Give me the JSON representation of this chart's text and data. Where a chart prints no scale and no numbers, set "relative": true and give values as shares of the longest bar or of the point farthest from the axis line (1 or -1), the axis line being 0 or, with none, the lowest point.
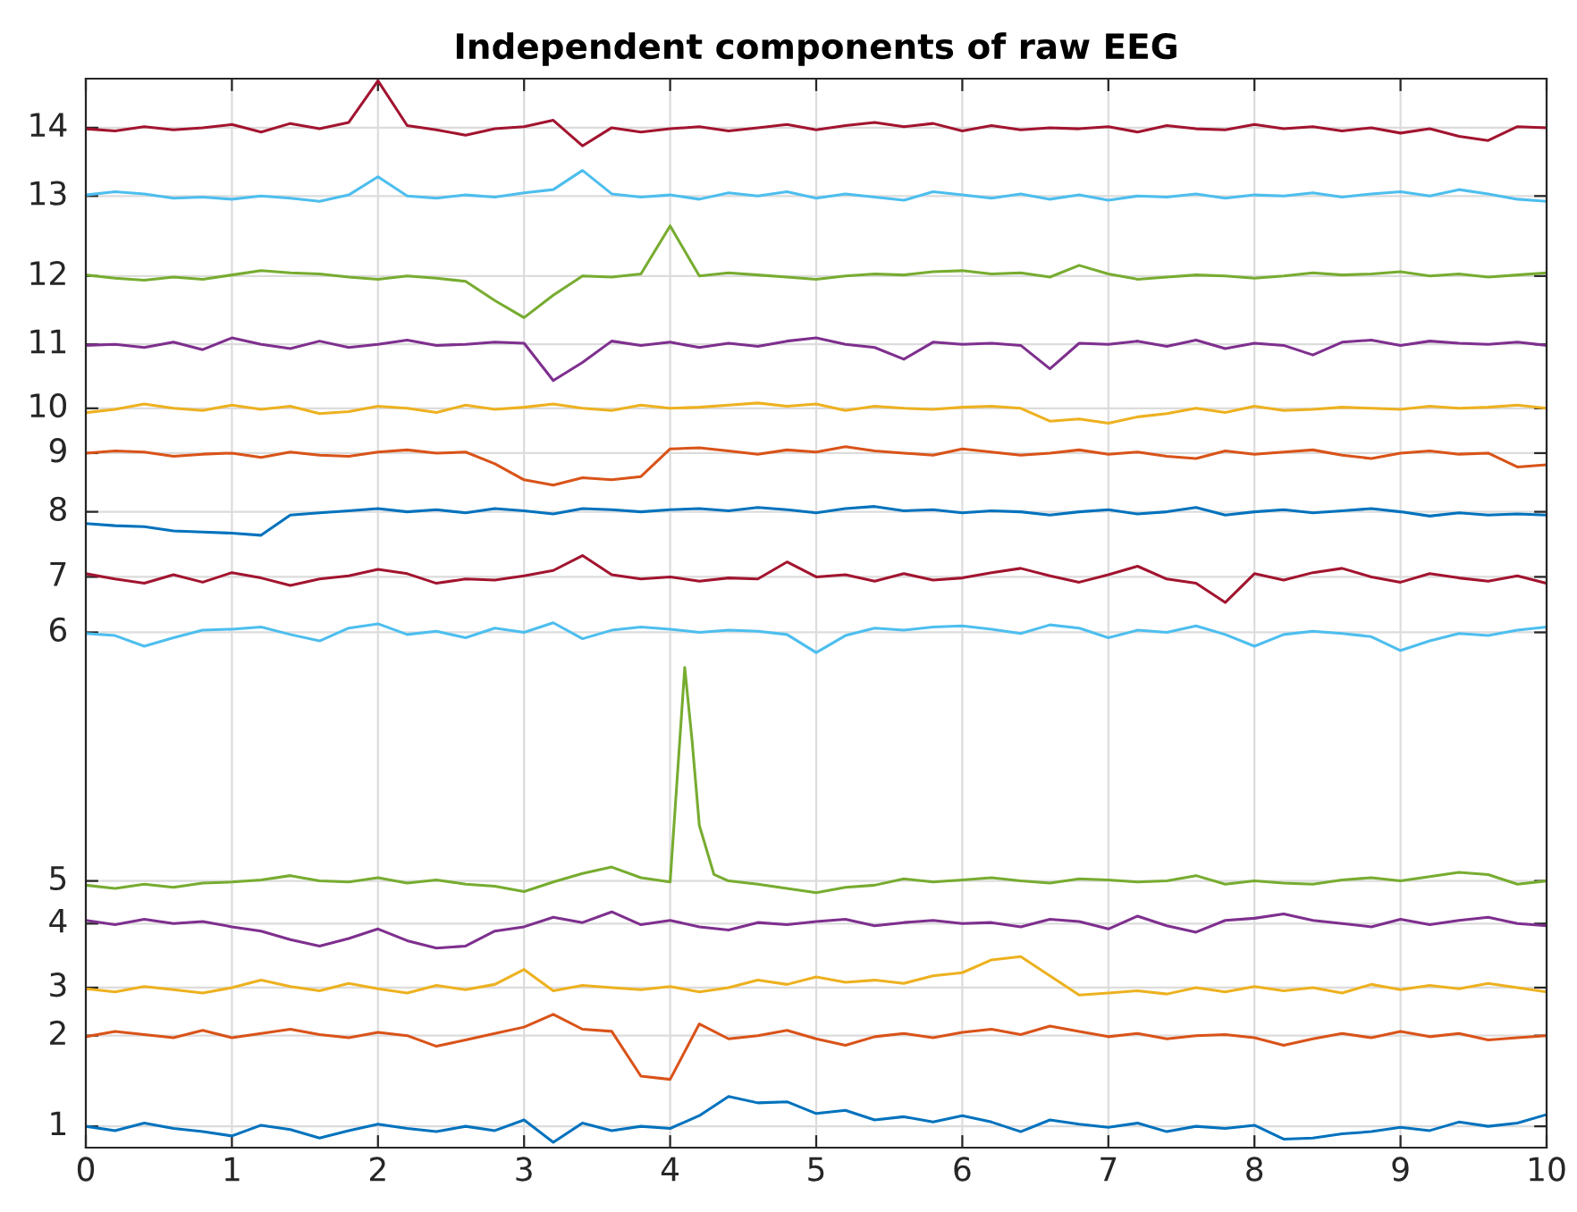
{
  "chart_data": {
    "type": "line",
    "title": "Independent components of raw EEG",
    "relative": true,
    "x": [
      0,
      0.2,
      0.4,
      0.6,
      0.8,
      1.0,
      1.2,
      1.4,
      1.6,
      1.8,
      2.0,
      2.2,
      2.4,
      2.6,
      2.8,
      3.0,
      3.2,
      3.4,
      3.6,
      3.8,
      4.0,
      4.2,
      4.4,
      4.6,
      4.8,
      5.0,
      5.2,
      5.4,
      5.6,
      5.8,
      6.0,
      6.2,
      6.4,
      6.6,
      6.8,
      7.0,
      7.2,
      7.4,
      7.6,
      7.8,
      8.0,
      8.2,
      8.4,
      8.6,
      8.8,
      9.0,
      9.2,
      9.4,
      9.6,
      9.8,
      10
    ],
    "xlim": [
      0,
      10
    ],
    "xticks": [
      0,
      1,
      2,
      3,
      4,
      5,
      6,
      7,
      8,
      9,
      10
    ],
    "grid": true,
    "series": [
      {
        "name": "1",
        "color": "#0072bd",
        "values": [
          0.02,
          0.016,
          0.023,
          0.018,
          0.015,
          0.011,
          0.021,
          0.017,
          0.009,
          0.016,
          0.022,
          0.018,
          0.015,
          0.02,
          0.016,
          0.026,
          0.005,
          0.023,
          0.016,
          0.02,
          0.018,
          0.03,
          0.048,
          0.042,
          0.043,
          0.032,
          0.035,
          0.026,
          0.029,
          0.024,
          0.03,
          0.024,
          0.015,
          0.026,
          0.022,
          0.019,
          0.023,
          0.015,
          0.02,
          0.018,
          0.021,
          0.008,
          0.009,
          0.013,
          0.015,
          0.019,
          0.016,
          0.024,
          0.02,
          0.023,
          0.031
        ]
      },
      {
        "name": "2",
        "color": "#d95319",
        "values": [
          0.104,
          0.109,
          0.106,
          0.103,
          0.11,
          0.103,
          0.107,
          0.111,
          0.106,
          0.103,
          0.108,
          0.105,
          0.095,
          0.101,
          0.107,
          0.113,
          0.125,
          0.111,
          0.109,
          0.067,
          0.064,
          0.116,
          0.102,
          0.105,
          0.11,
          0.102,
          0.096,
          0.104,
          0.107,
          0.103,
          0.108,
          0.111,
          0.106,
          0.114,
          0.109,
          0.104,
          0.107,
          0.102,
          0.105,
          0.106,
          0.103,
          0.096,
          0.102,
          0.107,
          0.103,
          0.109,
          0.104,
          0.107,
          0.101,
          0.103,
          0.105
        ]
      },
      {
        "name": "3",
        "color": "#edb120",
        "values": [
          0.149,
          0.146,
          0.151,
          0.148,
          0.145,
          0.15,
          0.157,
          0.151,
          0.147,
          0.154,
          0.149,
          0.145,
          0.152,
          0.148,
          0.153,
          0.167,
          0.147,
          0.152,
          0.15,
          0.148,
          0.151,
          0.146,
          0.15,
          0.157,
          0.153,
          0.16,
          0.155,
          0.157,
          0.154,
          0.161,
          0.164,
          0.176,
          0.179,
          0.161,
          0.143,
          0.145,
          0.147,
          0.144,
          0.15,
          0.146,
          0.151,
          0.147,
          0.15,
          0.145,
          0.153,
          0.148,
          0.152,
          0.149,
          0.154,
          0.15,
          0.146
        ]
      },
      {
        "name": "4",
        "color": "#7e2f8e",
        "values": [
          0.213,
          0.209,
          0.214,
          0.21,
          0.212,
          0.207,
          0.203,
          0.195,
          0.189,
          0.196,
          0.205,
          0.194,
          0.187,
          0.189,
          0.203,
          0.207,
          0.216,
          0.211,
          0.221,
          0.209,
          0.213,
          0.207,
          0.204,
          0.211,
          0.209,
          0.212,
          0.214,
          0.208,
          0.211,
          0.213,
          0.21,
          0.211,
          0.207,
          0.214,
          0.212,
          0.205,
          0.217,
          0.208,
          0.202,
          0.213,
          0.215,
          0.219,
          0.213,
          0.21,
          0.207,
          0.214,
          0.209,
          0.213,
          0.216,
          0.21,
          0.208
        ]
      },
      {
        "name": "5",
        "color": "#77ac30",
        "x": [
          0,
          0.2,
          0.4,
          0.6,
          0.8,
          1.0,
          1.2,
          1.4,
          1.6,
          1.8,
          2.0,
          2.2,
          2.4,
          2.6,
          2.8,
          3.0,
          3.2,
          3.4,
          3.6,
          3.8,
          4.0,
          4.1,
          4.15,
          4.2,
          4.3,
          4.4,
          4.6,
          4.8,
          5.0,
          5.2,
          5.4,
          5.6,
          5.8,
          6.0,
          6.2,
          6.4,
          6.6,
          6.8,
          7.0,
          7.2,
          7.4,
          7.6,
          7.8,
          8.0,
          8.2,
          8.4,
          8.6,
          8.8,
          9.0,
          9.2,
          9.4,
          9.6,
          9.8,
          10
        ],
        "values": [
          0.246,
          0.243,
          0.247,
          0.244,
          0.248,
          0.249,
          0.251,
          0.255,
          0.25,
          0.249,
          0.253,
          0.248,
          0.251,
          0.247,
          0.245,
          0.24,
          0.249,
          0.257,
          0.263,
          0.253,
          0.249,
          0.45,
          0.382,
          0.302,
          0.256,
          0.25,
          0.247,
          0.243,
          0.239,
          0.244,
          0.246,
          0.252,
          0.249,
          0.251,
          0.253,
          0.25,
          0.248,
          0.252,
          0.251,
          0.249,
          0.25,
          0.255,
          0.247,
          0.25,
          0.248,
          0.247,
          0.251,
          0.253,
          0.25,
          0.254,
          0.258,
          0.256,
          0.247,
          0.25
        ]
      },
      {
        "name": "6",
        "color": "#4dbeee",
        "values": [
          0.482,
          0.48,
          0.47,
          0.478,
          0.485,
          0.486,
          0.488,
          0.481,
          0.475,
          0.487,
          0.491,
          0.481,
          0.484,
          0.478,
          0.487,
          0.483,
          0.492,
          0.477,
          0.485,
          0.488,
          0.486,
          0.483,
          0.485,
          0.484,
          0.481,
          0.464,
          0.48,
          0.487,
          0.485,
          0.488,
          0.489,
          0.486,
          0.482,
          0.49,
          0.487,
          0.478,
          0.485,
          0.483,
          0.489,
          0.481,
          0.47,
          0.481,
          0.484,
          0.482,
          0.479,
          0.466,
          0.475,
          0.482,
          0.48,
          0.485,
          0.488
        ]
      },
      {
        "name": "7",
        "color": "#a2142f",
        "values": [
          0.538,
          0.533,
          0.529,
          0.537,
          0.53,
          0.539,
          0.534,
          0.527,
          0.533,
          0.536,
          0.542,
          0.538,
          0.529,
          0.533,
          0.532,
          0.536,
          0.541,
          0.555,
          0.537,
          0.533,
          0.535,
          0.531,
          0.534,
          0.533,
          0.549,
          0.535,
          0.537,
          0.531,
          0.538,
          0.532,
          0.534,
          0.539,
          0.543,
          0.536,
          0.53,
          0.537,
          0.545,
          0.533,
          0.529,
          0.511,
          0.538,
          0.532,
          0.539,
          0.543,
          0.535,
          0.53,
          0.538,
          0.534,
          0.531,
          0.536,
          0.529
        ]
      },
      {
        "name": "8",
        "color": "#0072bd",
        "values": [
          0.585,
          0.583,
          0.582,
          0.578,
          0.577,
          0.576,
          0.574,
          0.593,
          0.595,
          0.597,
          0.599,
          0.596,
          0.598,
          0.595,
          0.599,
          0.597,
          0.594,
          0.599,
          0.598,
          0.596,
          0.598,
          0.599,
          0.597,
          0.6,
          0.598,
          0.595,
          0.599,
          0.601,
          0.597,
          0.598,
          0.595,
          0.597,
          0.596,
          0.593,
          0.596,
          0.598,
          0.594,
          0.596,
          0.6,
          0.593,
          0.596,
          0.598,
          0.595,
          0.597,
          0.599,
          0.596,
          0.592,
          0.595,
          0.593,
          0.594,
          0.593
        ]
      },
      {
        "name": "9",
        "color": "#d95319",
        "values": [
          0.651,
          0.653,
          0.652,
          0.648,
          0.65,
          0.651,
          0.647,
          0.652,
          0.649,
          0.648,
          0.652,
          0.654,
          0.651,
          0.652,
          0.641,
          0.626,
          0.621,
          0.628,
          0.626,
          0.629,
          0.655,
          0.656,
          0.653,
          0.65,
          0.654,
          0.652,
          0.657,
          0.653,
          0.651,
          0.649,
          0.655,
          0.652,
          0.649,
          0.651,
          0.654,
          0.65,
          0.652,
          0.648,
          0.646,
          0.653,
          0.65,
          0.652,
          0.654,
          0.649,
          0.646,
          0.651,
          0.653,
          0.65,
          0.651,
          0.638,
          0.64
        ]
      },
      {
        "name": "10",
        "color": "#edb120",
        "values": [
          0.689,
          0.692,
          0.697,
          0.693,
          0.691,
          0.696,
          0.692,
          0.695,
          0.688,
          0.69,
          0.695,
          0.693,
          0.689,
          0.696,
          0.692,
          0.694,
          0.697,
          0.693,
          0.691,
          0.696,
          0.693,
          0.694,
          0.696,
          0.698,
          0.695,
          0.697,
          0.691,
          0.695,
          0.693,
          0.692,
          0.694,
          0.695,
          0.693,
          0.681,
          0.683,
          0.679,
          0.685,
          0.688,
          0.693,
          0.689,
          0.695,
          0.691,
          0.692,
          0.694,
          0.693,
          0.692,
          0.695,
          0.693,
          0.694,
          0.696,
          0.693
        ]
      },
      {
        "name": "11",
        "color": "#7e2f8e",
        "values": [
          0.752,
          0.753,
          0.75,
          0.755,
          0.748,
          0.759,
          0.753,
          0.749,
          0.756,
          0.75,
          0.753,
          0.757,
          0.752,
          0.753,
          0.755,
          0.754,
          0.719,
          0.736,
          0.756,
          0.752,
          0.755,
          0.75,
          0.754,
          0.751,
          0.756,
          0.759,
          0.753,
          0.75,
          0.739,
          0.755,
          0.753,
          0.754,
          0.752,
          0.73,
          0.754,
          0.753,
          0.756,
          0.751,
          0.757,
          0.749,
          0.754,
          0.752,
          0.743,
          0.755,
          0.757,
          0.752,
          0.756,
          0.754,
          0.753,
          0.755,
          0.752
        ]
      },
      {
        "name": "12",
        "color": "#77ac30",
        "values": [
          0.818,
          0.815,
          0.813,
          0.816,
          0.814,
          0.818,
          0.822,
          0.82,
          0.819,
          0.816,
          0.814,
          0.817,
          0.815,
          0.812,
          0.794,
          0.778,
          0.799,
          0.817,
          0.816,
          0.819,
          0.864,
          0.817,
          0.82,
          0.818,
          0.816,
          0.814,
          0.817,
          0.819,
          0.818,
          0.821,
          0.822,
          0.819,
          0.82,
          0.816,
          0.827,
          0.819,
          0.814,
          0.816,
          0.818,
          0.817,
          0.815,
          0.817,
          0.82,
          0.818,
          0.819,
          0.821,
          0.817,
          0.819,
          0.816,
          0.818,
          0.82
        ]
      },
      {
        "name": "13",
        "color": "#4dbeee",
        "values": [
          0.893,
          0.896,
          0.894,
          0.89,
          0.891,
          0.889,
          0.892,
          0.89,
          0.887,
          0.893,
          0.91,
          0.892,
          0.89,
          0.893,
          0.891,
          0.895,
          0.898,
          0.916,
          0.894,
          0.891,
          0.893,
          0.889,
          0.895,
          0.892,
          0.896,
          0.89,
          0.894,
          0.891,
          0.888,
          0.896,
          0.893,
          0.89,
          0.894,
          0.889,
          0.893,
          0.888,
          0.892,
          0.891,
          0.894,
          0.89,
          0.893,
          0.892,
          0.895,
          0.891,
          0.894,
          0.896,
          0.892,
          0.898,
          0.894,
          0.889,
          0.887
        ]
      },
      {
        "name": "14",
        "color": "#a2142f",
        "values": [
          0.955,
          0.953,
          0.957,
          0.954,
          0.956,
          0.959,
          0.952,
          0.96,
          0.955,
          0.961,
          1.0,
          0.958,
          0.954,
          0.949,
          0.955,
          0.957,
          0.963,
          0.939,
          0.956,
          0.952,
          0.955,
          0.957,
          0.953,
          0.956,
          0.959,
          0.954,
          0.958,
          0.961,
          0.957,
          0.96,
          0.953,
          0.958,
          0.954,
          0.956,
          0.955,
          0.957,
          0.952,
          0.958,
          0.955,
          0.954,
          0.959,
          0.955,
          0.957,
          0.953,
          0.956,
          0.951,
          0.955,
          0.948,
          0.944,
          0.957,
          0.956
        ]
      }
    ]
  }
}
